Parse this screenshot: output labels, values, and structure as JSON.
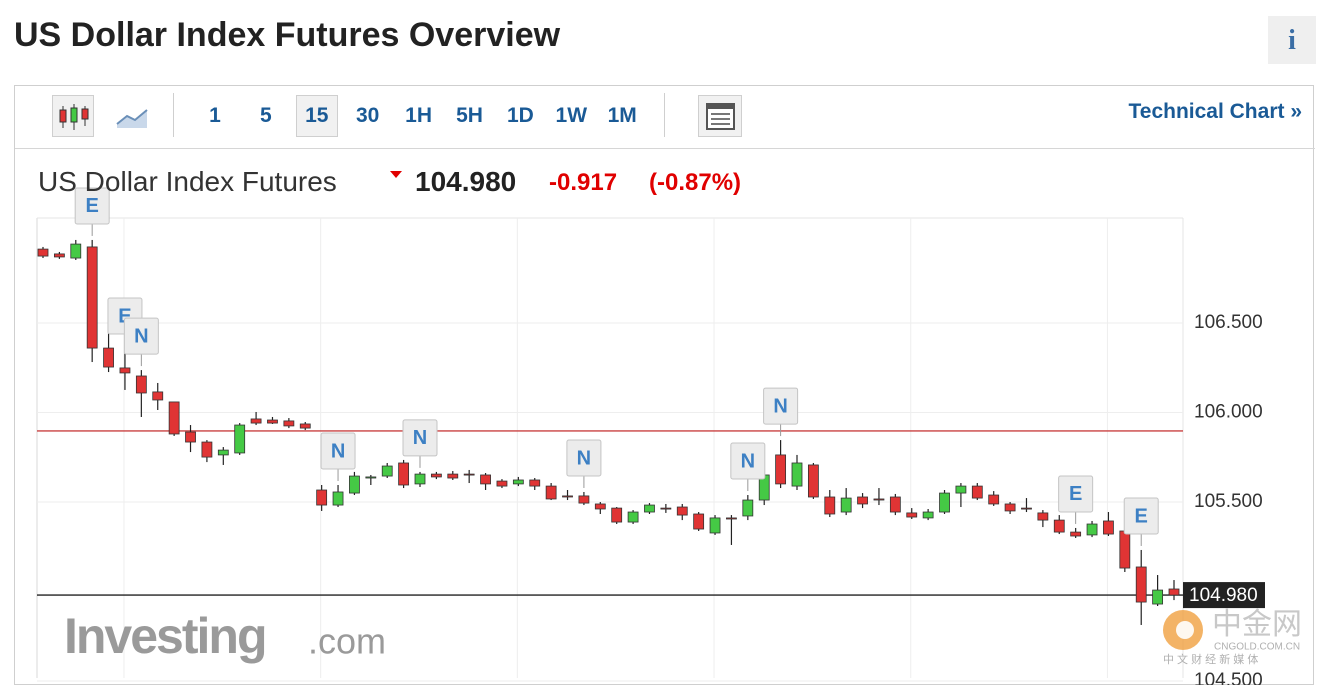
{
  "header": {
    "title": "US Dollar Index Futures Overview",
    "info": "i"
  },
  "toolbar": {
    "intervals": [
      "1",
      "5",
      "15",
      "30",
      "1H",
      "5H",
      "1D",
      "1W",
      "1M"
    ],
    "active_interval": "15",
    "technical_chart": "Technical Chart »"
  },
  "chart_data": {
    "type": "candlestick",
    "name": "US Dollar Index Futures",
    "price": {
      "value": 104.98,
      "label": "104.980"
    },
    "change": -0.917,
    "change_percent": {
      "value": -0.87,
      "label": "(-0.87%)"
    },
    "open": [
      106.913,
      106.886,
      106.863,
      106.925,
      106.36,
      106.249,
      106.204,
      106.115,
      106.059,
      105.891,
      105.835,
      105.763,
      105.774,
      105.964,
      105.958,
      105.953,
      105.936,
      105.567,
      105.483,
      105.55,
      105.634,
      105.645,
      105.718,
      105.601,
      105.656,
      105.656,
      105.656,
      105.651,
      105.617,
      105.601,
      105.623,
      105.589,
      105.534,
      105.534,
      105.489,
      105.466,
      105.388,
      105.444,
      105.466,
      105.472,
      105.433,
      105.327,
      105.411,
      105.422,
      105.511,
      105.763,
      105.589,
      105.707,
      105.528,
      105.444,
      105.528,
      105.517,
      105.528,
      105.439,
      105.411,
      105.444,
      105.55,
      105.589,
      105.539,
      105.489,
      105.466,
      105.439,
      105.399,
      105.332,
      105.316,
      105.394,
      105.338,
      105.137,
      104.93,
      105.014
    ],
    "high": [
      106.925,
      106.897,
      106.964,
      106.964,
      106.584,
      106.349,
      106.237,
      106.165,
      106.059,
      105.93,
      105.846,
      105.807,
      105.941,
      106.003,
      105.975,
      105.969,
      105.947,
      105.595,
      105.595,
      105.668,
      105.651,
      105.718,
      105.735,
      105.668,
      105.668,
      105.673,
      105.679,
      105.662,
      105.628,
      105.64,
      105.634,
      105.606,
      105.567,
      105.556,
      105.5,
      105.472,
      105.455,
      105.494,
      105.489,
      105.489,
      105.444,
      105.427,
      105.427,
      105.539,
      105.779,
      105.846,
      105.763,
      105.718,
      105.567,
      105.578,
      105.55,
      105.578,
      105.545,
      105.466,
      105.461,
      105.567,
      105.606,
      105.606,
      105.561,
      105.5,
      105.522,
      105.455,
      105.427,
      105.355,
      105.394,
      105.444,
      105.349,
      105.232,
      105.092,
      105.064
    ],
    "low": [
      106.863,
      106.858,
      106.852,
      106.282,
      106.226,
      106.126,
      105.975,
      106.014,
      105.869,
      105.779,
      105.723,
      105.707,
      105.763,
      105.93,
      105.936,
      105.913,
      105.902,
      105.45,
      105.472,
      105.539,
      105.595,
      105.634,
      105.578,
      105.584,
      105.628,
      105.623,
      105.606,
      105.567,
      105.578,
      105.589,
      105.567,
      105.511,
      105.511,
      105.483,
      105.433,
      105.377,
      105.377,
      105.433,
      105.439,
      105.399,
      105.338,
      105.316,
      105.26,
      105.399,
      105.483,
      105.578,
      105.567,
      105.517,
      105.416,
      105.427,
      105.466,
      105.483,
      105.427,
      105.405,
      105.399,
      105.433,
      105.472,
      105.511,
      105.478,
      105.433,
      105.444,
      105.36,
      105.321,
      105.299,
      105.304,
      105.31,
      105.109,
      104.813,
      104.919,
      104.952
    ],
    "close": [
      106.874,
      106.869,
      106.941,
      106.36,
      106.254,
      106.221,
      106.109,
      106.07,
      105.88,
      105.835,
      105.751,
      105.79,
      105.93,
      105.941,
      105.941,
      105.925,
      105.913,
      105.483,
      105.556,
      105.645,
      105.64,
      105.701,
      105.595,
      105.656,
      105.64,
      105.634,
      105.651,
      105.601,
      105.589,
      105.623,
      105.589,
      105.517,
      105.528,
      105.494,
      105.461,
      105.388,
      105.444,
      105.483,
      105.461,
      105.427,
      105.349,
      105.411,
      105.405,
      105.511,
      105.651,
      105.601,
      105.718,
      105.528,
      105.433,
      105.522,
      105.489,
      105.511,
      105.444,
      105.416,
      105.444,
      105.55,
      105.589,
      105.522,
      105.489,
      105.45,
      105.461,
      105.399,
      105.332,
      105.31,
      105.377,
      105.321,
      105.131,
      104.941,
      105.008,
      104.98
    ],
    "events": [
      null,
      null,
      null,
      "E",
      null,
      "E",
      "N",
      null,
      null,
      null,
      null,
      null,
      null,
      null,
      null,
      null,
      null,
      null,
      "N",
      null,
      null,
      null,
      null,
      "N",
      null,
      null,
      null,
      null,
      null,
      null,
      null,
      null,
      null,
      "N",
      null,
      null,
      null,
      null,
      null,
      null,
      null,
      null,
      null,
      "N",
      null,
      "N",
      null,
      null,
      null,
      null,
      null,
      null,
      null,
      null,
      null,
      null,
      null,
      null,
      null,
      null,
      null,
      null,
      null,
      "E",
      null,
      null,
      null,
      "E",
      null,
      null
    ],
    "up_color": "#45c945",
    "down_color": "#e03434",
    "reference_line": 105.897,
    "reference_color": "#c94040",
    "ylim": [
      104.5,
      107.09
    ],
    "yticks": [
      {
        "value": 106.5,
        "label": "106.500"
      },
      {
        "value": 106,
        "label": "106.000"
      },
      {
        "value": 105.5,
        "label": "105.500"
      },
      {
        "value": 104.5,
        "label": "104.500"
      }
    ],
    "watermark": {
      "brand": "Investing",
      "suffix": ".com",
      "cn_name": "中金网",
      "cn_site": "CNGOLD.COM.CN",
      "cn_slogan": "中 文 财 经 新 媒 体"
    }
  }
}
